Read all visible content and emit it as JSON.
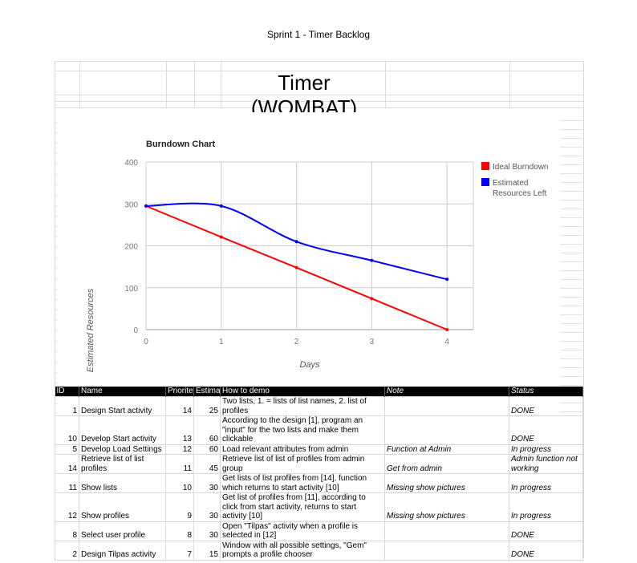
{
  "page_title": "Sprint 1 - Timer Backlog",
  "sheet_title": "Timer (WOMBAT)",
  "chart_data": {
    "type": "line",
    "title": "Burndown Chart",
    "xlabel": "Days",
    "ylabel": "Estimated Resources",
    "x": [
      0,
      1,
      2,
      3,
      4
    ],
    "xticks": [
      "0",
      "1",
      "2",
      "3",
      "4"
    ],
    "yticks": [
      "0",
      "100",
      "200",
      "300",
      "400"
    ],
    "xlim": [
      0,
      4.35
    ],
    "ylim": [
      0,
      400
    ],
    "grid": true,
    "legend": "right",
    "series": [
      {
        "name": "Ideal Burndown",
        "color": "#ff0000",
        "values": [
          295,
          221,
          148,
          74,
          0
        ]
      },
      {
        "name": "Estimated Resources Left",
        "color": "#0000ff",
        "values": [
          295,
          295,
          210,
          165,
          120
        ]
      }
    ]
  },
  "table": {
    "headers": [
      "ID",
      "Name",
      "Priorite",
      "Estima",
      "How to demo",
      "Note",
      "Status"
    ],
    "rows": [
      {
        "id": "1",
        "name": "Design Start activity",
        "priority": "14",
        "estimate": "25",
        "demo": "Two lists, 1. = lists of list names, 2. list of profiles",
        "note": "",
        "status": "DONE"
      },
      {
        "id": "10",
        "name": "Develop Start activity",
        "priority": "13",
        "estimate": "60",
        "demo": "According to the design [1], program an \"input\" for the two lists and make them clickable",
        "note": "",
        "status": "DONE"
      },
      {
        "id": "5",
        "name": "Develop Load Settings",
        "priority": "12",
        "estimate": "60",
        "demo": "Load relevant attributes from admin",
        "note": "Function at Admin",
        "status": "In progress"
      },
      {
        "id": "14",
        "name": "Retrieve list of list profiles",
        "priority": "11",
        "estimate": "45",
        "demo": "Retrieve list of list of profiles from admin group",
        "note": "Get from admin",
        "status": "Admin function not working"
      },
      {
        "id": "11",
        "name": "Show lists",
        "priority": "10",
        "estimate": "30",
        "demo": "Get lists of list profiles from [14], function which returns to start activity [10]",
        "note": "Missing show pictures",
        "status": "In progress"
      },
      {
        "id": "12",
        "name": "Show profiles",
        "priority": "9",
        "estimate": "30",
        "demo": "Get list of profiles from [11], according to click from start activity, returns to start activity [10]",
        "note": "Missing show pictures",
        "status": "In progress"
      },
      {
        "id": "8",
        "name": "Select user profile",
        "priority": "8",
        "estimate": "30",
        "demo": "Open \"Tilpas\" activity when a profile is selected in [12]",
        "note": "",
        "status": "DONE"
      },
      {
        "id": "2",
        "name": "Design Tilpas activity",
        "priority": "7",
        "estimate": "15",
        "demo": "Window with all possible settings, \"Gem\" prompts a profile chooser",
        "note": "",
        "status": "DONE"
      }
    ]
  }
}
